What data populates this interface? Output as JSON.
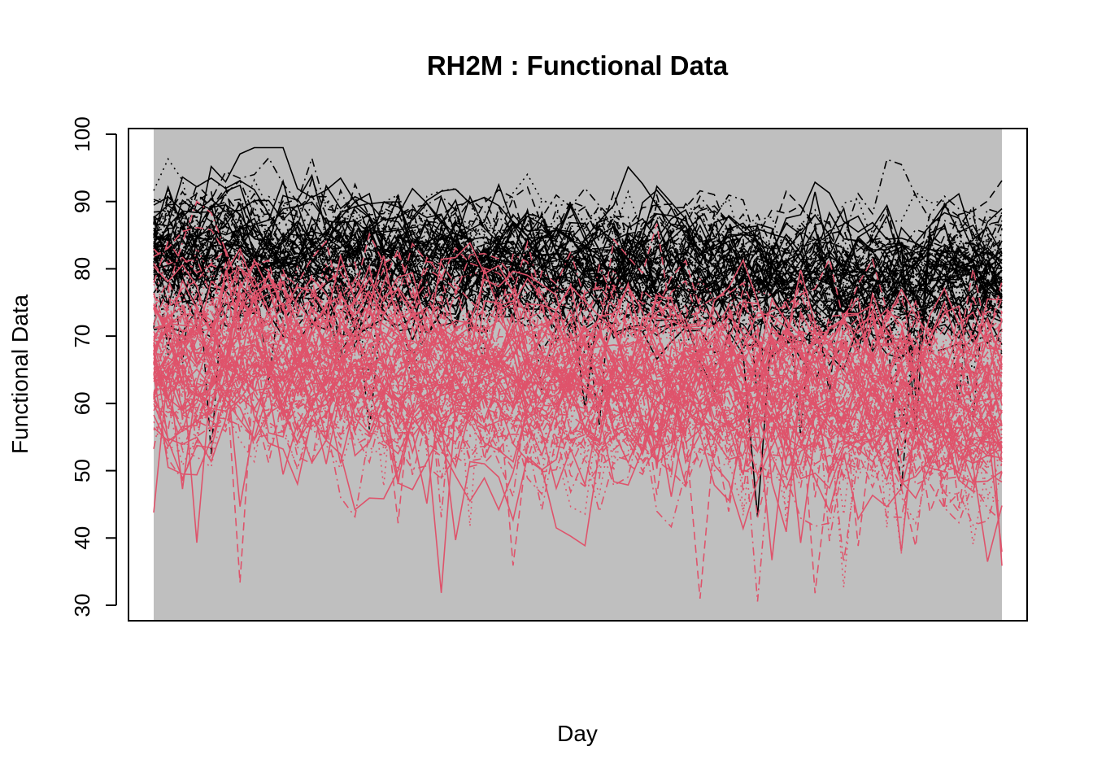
{
  "chart_data": {
    "type": "line",
    "title": "RH2M : Functional Data",
    "xlabel": "Day",
    "ylabel": "Functional Data",
    "ylim": [
      28,
      101
    ],
    "yticks": [
      30,
      40,
      50,
      60,
      70,
      80,
      90,
      100
    ],
    "x_tick_labels": false,
    "points_per_curve": 60,
    "plot_background": "#bfbfbf",
    "grid": false,
    "legend": "none",
    "series": [
      {
        "color": "#000000",
        "curve_count": 80,
        "line_styles": [
          "solid",
          "dashed",
          "dotted",
          "dashdot"
        ],
        "level_start": 83,
        "level_mid": 80,
        "level_end": 78,
        "spread": 6,
        "amplitude": 6,
        "min": 42,
        "max": 98
      },
      {
        "color": "#df536b",
        "curve_count": 90,
        "line_styles": [
          "solid",
          "dashed",
          "dotted",
          "dashdot"
        ],
        "level_start": 68,
        "level_mid": 64,
        "level_end": 60,
        "spread": 9,
        "amplitude": 8,
        "min": 30,
        "max": 97
      }
    ]
  }
}
